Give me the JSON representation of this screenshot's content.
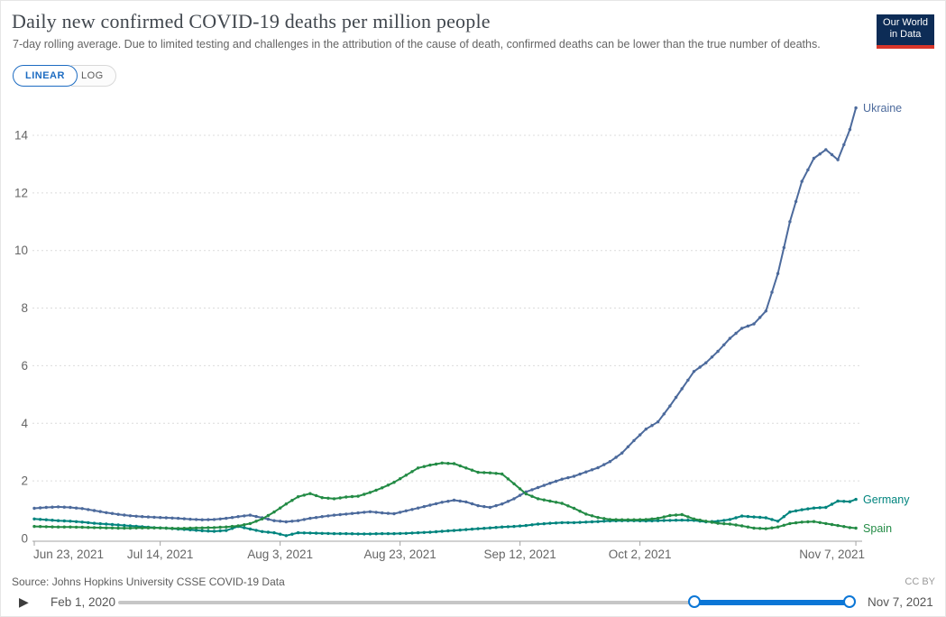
{
  "header": {
    "title": "Daily new confirmed COVID-19 deaths per million people",
    "subtitle": "7-day rolling average. Due to limited testing and challenges in the attribution of the cause of death, confirmed deaths can be lower than the true number of deaths.",
    "logo_line1": "Our World",
    "logo_line2": "in Data"
  },
  "toolbar": {
    "linear_label": "LINEAR",
    "log_label": "LOG",
    "active_scale": "LINEAR",
    "accent_color": "#1d6cc2"
  },
  "chart_data": {
    "type": "line",
    "title": "Daily new confirmed COVID-19 deaths per million people",
    "subtitle": "7-day rolling average.",
    "grid": "dashed-horizontal",
    "legend_position": "end-of-line",
    "x_axis": {
      "start_date": "Jun 23, 2021",
      "end_date": "Nov 7, 2021",
      "tick_labels": [
        "Jun 23, 2021",
        "Jul 14, 2021",
        "Aug 3, 2021",
        "Aug 23, 2021",
        "Sep 12, 2021",
        "Oct 2, 2021",
        "Nov 7, 2021"
      ],
      "tick_days": [
        0,
        21,
        41,
        61,
        81,
        101,
        137
      ]
    },
    "y_axis": {
      "tick_labels": [
        "0",
        "2",
        "4",
        "6",
        "8",
        "10",
        "12",
        "14"
      ],
      "ticks": [
        0,
        2,
        4,
        6,
        8,
        10,
        12,
        14
      ],
      "range": [
        0,
        15.5
      ]
    },
    "series": [
      {
        "name": "Ukraine",
        "color": "#4C6A9C",
        "points": [
          [
            0,
            1.05
          ],
          [
            2,
            1.08
          ],
          [
            4,
            1.1
          ],
          [
            6,
            1.08
          ],
          [
            8,
            1.04
          ],
          [
            10,
            0.97
          ],
          [
            12,
            0.9
          ],
          [
            14,
            0.84
          ],
          [
            16,
            0.79
          ],
          [
            18,
            0.76
          ],
          [
            20,
            0.74
          ],
          [
            22,
            0.72
          ],
          [
            24,
            0.7
          ],
          [
            26,
            0.67
          ],
          [
            28,
            0.65
          ],
          [
            30,
            0.66
          ],
          [
            32,
            0.7
          ],
          [
            34,
            0.76
          ],
          [
            36,
            0.81
          ],
          [
            38,
            0.72
          ],
          [
            40,
            0.62
          ],
          [
            42,
            0.58
          ],
          [
            44,
            0.62
          ],
          [
            46,
            0.7
          ],
          [
            48,
            0.76
          ],
          [
            50,
            0.81
          ],
          [
            52,
            0.85
          ],
          [
            54,
            0.89
          ],
          [
            56,
            0.93
          ],
          [
            58,
            0.89
          ],
          [
            60,
            0.86
          ],
          [
            62,
            0.96
          ],
          [
            64,
            1.06
          ],
          [
            66,
            1.16
          ],
          [
            68,
            1.26
          ],
          [
            70,
            1.33
          ],
          [
            72,
            1.27
          ],
          [
            74,
            1.14
          ],
          [
            76,
            1.08
          ],
          [
            78,
            1.2
          ],
          [
            80,
            1.38
          ],
          [
            82,
            1.62
          ],
          [
            84,
            1.77
          ],
          [
            86,
            1.92
          ],
          [
            88,
            2.06
          ],
          [
            90,
            2.16
          ],
          [
            92,
            2.31
          ],
          [
            94,
            2.46
          ],
          [
            96,
            2.67
          ],
          [
            98,
            2.97
          ],
          [
            100,
            3.4
          ],
          [
            102,
            3.8
          ],
          [
            104,
            4.05
          ],
          [
            106,
            4.6
          ],
          [
            108,
            5.2
          ],
          [
            110,
            5.8
          ],
          [
            112,
            6.1
          ],
          [
            114,
            6.5
          ],
          [
            116,
            6.95
          ],
          [
            118,
            7.3
          ],
          [
            120,
            7.45
          ],
          [
            122,
            7.9
          ],
          [
            124,
            9.2
          ],
          [
            126,
            11.0
          ],
          [
            128,
            12.4
          ],
          [
            130,
            13.2
          ],
          [
            132,
            13.5
          ],
          [
            134,
            13.15
          ],
          [
            136,
            14.2
          ],
          [
            137,
            14.95
          ]
        ]
      },
      {
        "name": "Germany",
        "color": "#00847E",
        "points": [
          [
            0,
            0.68
          ],
          [
            2,
            0.65
          ],
          [
            4,
            0.62
          ],
          [
            6,
            0.6
          ],
          [
            8,
            0.57
          ],
          [
            10,
            0.53
          ],
          [
            12,
            0.5
          ],
          [
            14,
            0.47
          ],
          [
            16,
            0.44
          ],
          [
            18,
            0.41
          ],
          [
            20,
            0.38
          ],
          [
            22,
            0.36
          ],
          [
            24,
            0.33
          ],
          [
            26,
            0.3
          ],
          [
            28,
            0.27
          ],
          [
            30,
            0.25
          ],
          [
            32,
            0.28
          ],
          [
            34,
            0.42
          ],
          [
            36,
            0.33
          ],
          [
            38,
            0.24
          ],
          [
            40,
            0.2
          ],
          [
            42,
            0.1
          ],
          [
            44,
            0.2
          ],
          [
            46,
            0.19
          ],
          [
            48,
            0.18
          ],
          [
            50,
            0.17
          ],
          [
            52,
            0.17
          ],
          [
            54,
            0.16
          ],
          [
            56,
            0.16
          ],
          [
            58,
            0.17
          ],
          [
            60,
            0.17
          ],
          [
            62,
            0.18
          ],
          [
            64,
            0.2
          ],
          [
            66,
            0.22
          ],
          [
            68,
            0.25
          ],
          [
            70,
            0.28
          ],
          [
            72,
            0.31
          ],
          [
            74,
            0.34
          ],
          [
            76,
            0.37
          ],
          [
            78,
            0.4
          ],
          [
            80,
            0.42
          ],
          [
            82,
            0.45
          ],
          [
            84,
            0.5
          ],
          [
            86,
            0.53
          ],
          [
            88,
            0.55
          ],
          [
            90,
            0.55
          ],
          [
            92,
            0.57
          ],
          [
            94,
            0.59
          ],
          [
            96,
            0.61
          ],
          [
            98,
            0.62
          ],
          [
            100,
            0.62
          ],
          [
            102,
            0.61
          ],
          [
            104,
            0.62
          ],
          [
            106,
            0.63
          ],
          [
            108,
            0.64
          ],
          [
            110,
            0.63
          ],
          [
            112,
            0.58
          ],
          [
            114,
            0.6
          ],
          [
            116,
            0.66
          ],
          [
            118,
            0.78
          ],
          [
            120,
            0.75
          ],
          [
            122,
            0.72
          ],
          [
            124,
            0.6
          ],
          [
            126,
            0.92
          ],
          [
            128,
            1.0
          ],
          [
            130,
            1.06
          ],
          [
            132,
            1.08
          ],
          [
            134,
            1.3
          ],
          [
            136,
            1.28
          ],
          [
            137,
            1.36
          ]
        ]
      },
      {
        "name": "Spain",
        "color": "#238B45",
        "points": [
          [
            0,
            0.42
          ],
          [
            2,
            0.41
          ],
          [
            4,
            0.4
          ],
          [
            6,
            0.4
          ],
          [
            8,
            0.39
          ],
          [
            10,
            0.38
          ],
          [
            12,
            0.37
          ],
          [
            14,
            0.36
          ],
          [
            16,
            0.36
          ],
          [
            18,
            0.37
          ],
          [
            20,
            0.37
          ],
          [
            22,
            0.36
          ],
          [
            24,
            0.35
          ],
          [
            26,
            0.36
          ],
          [
            28,
            0.37
          ],
          [
            30,
            0.38
          ],
          [
            32,
            0.4
          ],
          [
            34,
            0.44
          ],
          [
            36,
            0.52
          ],
          [
            38,
            0.68
          ],
          [
            40,
            0.92
          ],
          [
            42,
            1.2
          ],
          [
            44,
            1.45
          ],
          [
            46,
            1.56
          ],
          [
            48,
            1.42
          ],
          [
            50,
            1.38
          ],
          [
            52,
            1.44
          ],
          [
            54,
            1.47
          ],
          [
            56,
            1.6
          ],
          [
            58,
            1.76
          ],
          [
            60,
            1.95
          ],
          [
            62,
            2.2
          ],
          [
            64,
            2.45
          ],
          [
            66,
            2.55
          ],
          [
            68,
            2.62
          ],
          [
            70,
            2.6
          ],
          [
            72,
            2.45
          ],
          [
            74,
            2.3
          ],
          [
            76,
            2.28
          ],
          [
            78,
            2.24
          ],
          [
            80,
            1.9
          ],
          [
            82,
            1.55
          ],
          [
            84,
            1.38
          ],
          [
            86,
            1.3
          ],
          [
            88,
            1.22
          ],
          [
            90,
            1.05
          ],
          [
            92,
            0.85
          ],
          [
            94,
            0.73
          ],
          [
            96,
            0.66
          ],
          [
            98,
            0.65
          ],
          [
            100,
            0.65
          ],
          [
            102,
            0.66
          ],
          [
            104,
            0.7
          ],
          [
            106,
            0.8
          ],
          [
            108,
            0.83
          ],
          [
            110,
            0.68
          ],
          [
            112,
            0.6
          ],
          [
            114,
            0.53
          ],
          [
            116,
            0.5
          ],
          [
            118,
            0.44
          ],
          [
            120,
            0.36
          ],
          [
            122,
            0.34
          ],
          [
            124,
            0.4
          ],
          [
            126,
            0.52
          ],
          [
            128,
            0.57
          ],
          [
            130,
            0.59
          ],
          [
            132,
            0.52
          ],
          [
            134,
            0.45
          ],
          [
            136,
            0.38
          ],
          [
            137,
            0.36
          ]
        ]
      }
    ]
  },
  "footer": {
    "source": "Source: Johns Hopkins University CSSE COVID-19 Data",
    "license": "CC BY",
    "timeline": {
      "start_label": "Feb 1, 2020",
      "end_label": "Nov 7, 2021",
      "play_icon": "▶",
      "window_start_frac": 0.787,
      "window_end_frac": 0.998
    }
  }
}
